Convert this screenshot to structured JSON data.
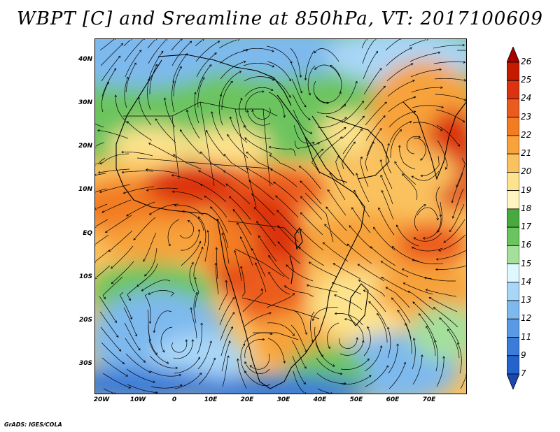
{
  "title": "WBPT [C] and Sreamline at 850hPa, VT: 2017100609",
  "footer": "GrADS: IGES/COLA",
  "map": {
    "lat_labels": [
      "40N",
      "30N",
      "20N",
      "10N",
      "EQ",
      "10S",
      "20S",
      "30S"
    ],
    "lon_labels": [
      "20W",
      "10W",
      "0",
      "10E",
      "20E",
      "30E",
      "40E",
      "50E",
      "60E",
      "70E"
    ]
  },
  "colorbar": {
    "labels": [
      "26",
      "25",
      "24",
      "23",
      "22",
      "21",
      "20",
      "19",
      "18",
      "17",
      "16",
      "15",
      "14",
      "13",
      "12",
      "11",
      "9",
      "7"
    ],
    "colors": [
      "#a80000",
      "#c41a00",
      "#dc3210",
      "#ec5b1e",
      "#f27c22",
      "#f7a23a",
      "#fac15e",
      "#fde38d",
      "#fff5c0",
      "#48aa3e",
      "#6cc45e",
      "#a4df9c",
      "#def8ff",
      "#a8d6f7",
      "#7eb9ee",
      "#5a9ae4",
      "#3b7cd8",
      "#2462cc",
      "#1a48b0"
    ]
  }
}
